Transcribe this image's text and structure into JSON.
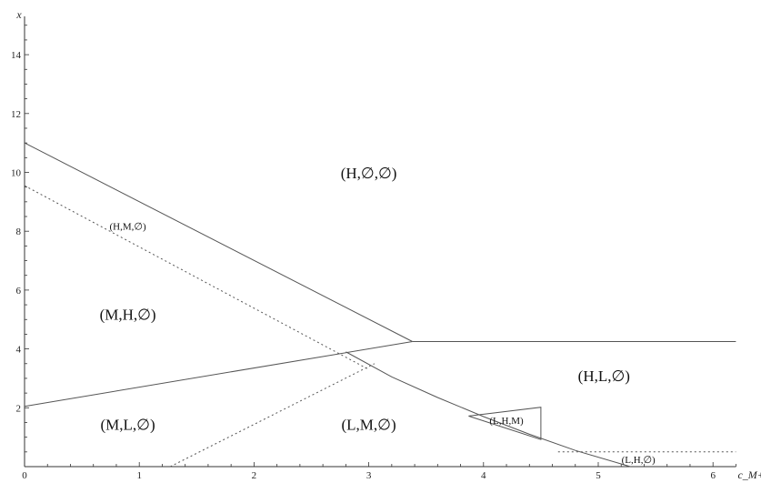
{
  "chart_data": {
    "type": "line",
    "xlabel": "c_M+ψ",
    "ylabel": "x",
    "xlim": [
      0,
      6.2
    ],
    "ylim": [
      0,
      15.3
    ],
    "x_ticks": [
      0,
      1,
      2,
      3,
      4,
      5,
      6
    ],
    "x_tick_labels": [
      "0",
      "1",
      "2",
      "3",
      "4",
      "5",
      "6"
    ],
    "y_ticks": [
      2,
      4,
      6,
      8,
      10,
      12,
      14
    ],
    "y_tick_labels": [
      "2",
      "4",
      "6",
      "8",
      "10",
      "12",
      "14"
    ],
    "series": [
      {
        "style": "solid",
        "x": [
          0,
          3.38
        ],
        "y": [
          11.0,
          4.25
        ]
      },
      {
        "style": "solid",
        "x": [
          0,
          3.38
        ],
        "y": [
          2.05,
          4.25
        ]
      },
      {
        "style": "solid",
        "x": [
          3.38,
          6.2
        ],
        "y": [
          4.25,
          4.25
        ]
      },
      {
        "style": "solid",
        "x": [
          2.8,
          3.2,
          3.6,
          4.0,
          4.4,
          4.8,
          5.28
        ],
        "y": [
          3.9,
          3.05,
          2.35,
          1.7,
          1.1,
          0.55,
          0.0
        ]
      },
      {
        "style": "dotted",
        "x": [
          0,
          3.0
        ],
        "y": [
          9.55,
          3.3
        ]
      },
      {
        "style": "dotted",
        "x": [
          1.27,
          3.05
        ],
        "y": [
          0.0,
          3.5
        ]
      },
      {
        "style": "dotted",
        "x": [
          4.65,
          6.2
        ],
        "y": [
          0.5,
          0.5
        ]
      },
      {
        "style": "solid",
        "x": [
          3.87,
          4.5,
          4.5,
          3.87
        ],
        "y": [
          1.72,
          2.02,
          0.92,
          1.72
        ]
      }
    ],
    "annotations": [
      {
        "text": "(H,∅,∅)",
        "x": 3.0,
        "y": 9.8,
        "size": "lg"
      },
      {
        "text": "(H,M,∅)",
        "x": 0.9,
        "y": 8.05,
        "size": "sm"
      },
      {
        "text": "(M,H,∅)",
        "x": 0.9,
        "y": 5.0,
        "size": "lg"
      },
      {
        "text": "(M,L,∅)",
        "x": 0.9,
        "y": 1.25,
        "size": "lg"
      },
      {
        "text": "(L,M,∅)",
        "x": 3.0,
        "y": 1.25,
        "size": "lg"
      },
      {
        "text": "(H,L,∅)",
        "x": 5.05,
        "y": 2.9,
        "size": "lg"
      },
      {
        "text": "(L,H,M)",
        "x": 4.2,
        "y": 1.45,
        "size": "sm"
      },
      {
        "text": "(L,H,∅)",
        "x": 5.35,
        "y": 0.12,
        "size": "sm"
      }
    ]
  }
}
